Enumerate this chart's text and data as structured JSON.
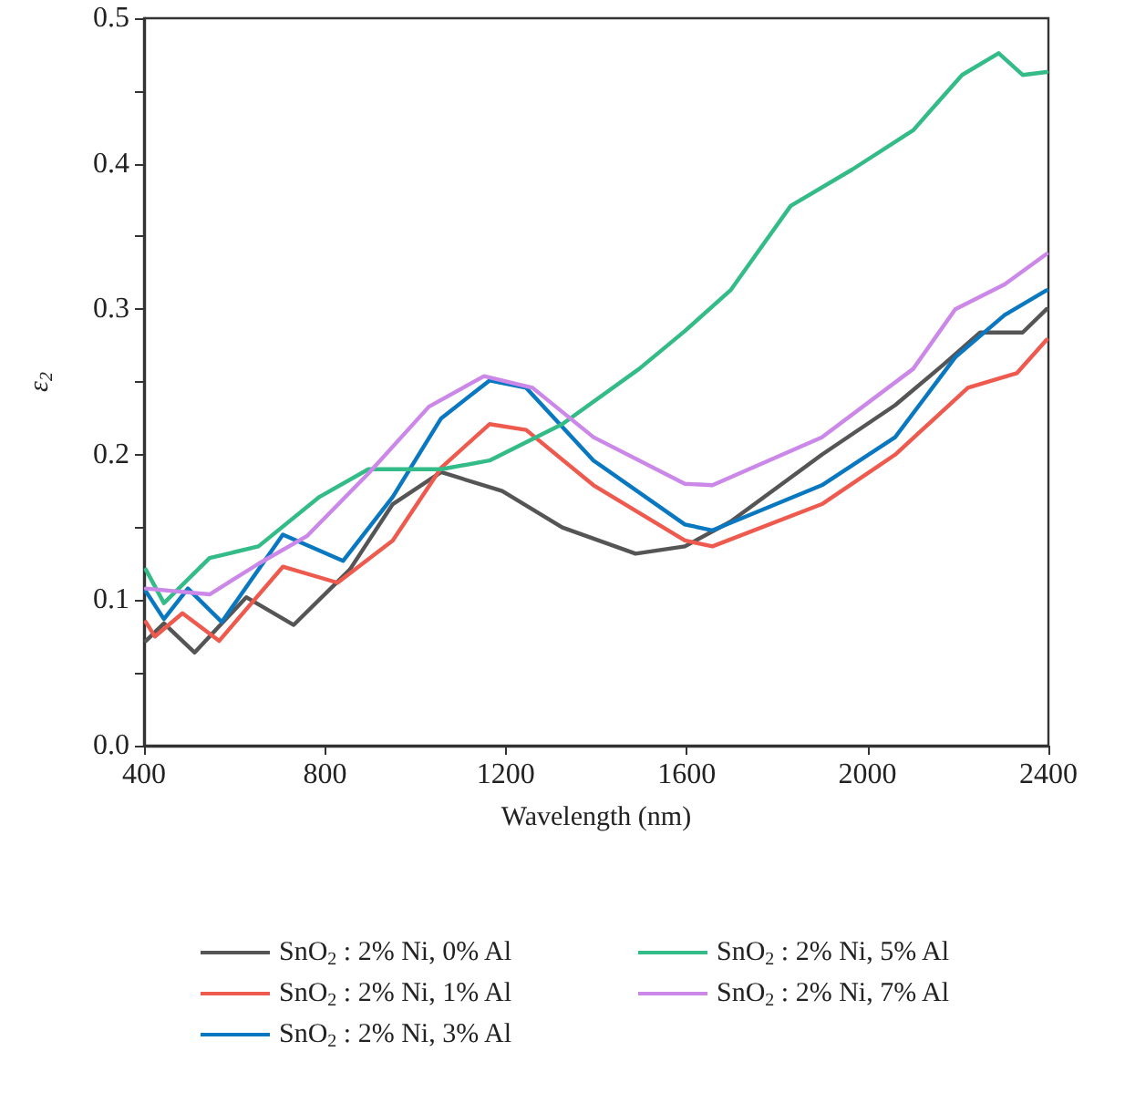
{
  "chart_data": {
    "type": "line",
    "xlabel": "Wavelength (nm)",
    "ylabel": "ε$_{2}$",
    "xlim": [
      400,
      2400
    ],
    "xticks": [
      400,
      800,
      1200,
      1600,
      2000,
      2400
    ],
    "ylim": [
      0,
      0.5
    ],
    "yticks": [
      {
        "value": 0,
        "label": "0.0"
      },
      {
        "value": 0.05,
        "label": null
      },
      {
        "value": 0.1,
        "label": "0.1"
      },
      {
        "value": 0.15,
        "label": null
      },
      {
        "value": 0.2,
        "label": "0.2"
      },
      {
        "value": 0.25,
        "label": null
      },
      {
        "value": 0.3,
        "label": "0.3"
      },
      {
        "value": 0.35,
        "label": null
      },
      {
        "value": 0.4,
        "label": "0.4"
      },
      {
        "value": 0.45,
        "label": null
      },
      {
        "value": 0.5,
        "label": "0.5"
      }
    ],
    "grid": false,
    "legend": "bottom",
    "marker": "none",
    "line_style": "solid",
    "series": [
      {
        "name": "SnO$_{2}$ : 2% Ni, 0% Al",
        "color": "#555555",
        "x": [
          404,
          444,
          512,
          626,
          731,
          855,
          950,
          1057,
          1192,
          1325,
          1487,
          1596,
          1697,
          1899,
          2061,
          2168,
          2249,
          2343,
          2396
        ],
        "values": [
          0.072,
          0.084,
          0.064,
          0.102,
          0.083,
          0.121,
          0.166,
          0.188,
          0.175,
          0.15,
          0.132,
          0.137,
          0.154,
          0.2,
          0.234,
          0.262,
          0.284,
          0.284,
          0.3
        ]
      },
      {
        "name": "SnO$_{2}$ : 2% Ni, 1% Al",
        "color": "#ef5a4f",
        "x": [
          404,
          424,
          485,
          566,
          707,
          828,
          950,
          1057,
          1164,
          1245,
          1394,
          1596,
          1657,
          1899,
          2061,
          2222,
          2330,
          2396
        ],
        "values": [
          0.085,
          0.075,
          0.091,
          0.072,
          0.123,
          0.112,
          0.141,
          0.191,
          0.221,
          0.217,
          0.179,
          0.141,
          0.137,
          0.166,
          0.2,
          0.246,
          0.256,
          0.279
        ]
      },
      {
        "name": "SnO$_{2}$ : 2% Ni, 3% Al",
        "color": "#0a78c0",
        "x": [
          404,
          444,
          497,
          572,
          707,
          840,
          950,
          1057,
          1164,
          1245,
          1394,
          1596,
          1657,
          1899,
          2061,
          2194,
          2303,
          2396
        ],
        "values": [
          0.106,
          0.087,
          0.108,
          0.085,
          0.145,
          0.127,
          0.171,
          0.225,
          0.251,
          0.246,
          0.196,
          0.152,
          0.148,
          0.179,
          0.212,
          0.267,
          0.296,
          0.313
        ]
      },
      {
        "name": "SnO$_{2}$ : 2% Ni, 5% Al",
        "color": "#33bb88",
        "x": [
          404,
          444,
          545,
          653,
          788,
          896,
          1057,
          1164,
          1325,
          1495,
          1596,
          1697,
          1830,
          1966,
          2101,
          2209,
          2290,
          2343,
          2396
        ],
        "values": [
          0.121,
          0.098,
          0.129,
          0.137,
          0.171,
          0.19,
          0.19,
          0.196,
          0.221,
          0.259,
          0.285,
          0.313,
          0.371,
          0.396,
          0.423,
          0.461,
          0.476,
          0.461,
          0.463
        ]
      },
      {
        "name": "SnO$_{2}$ : 2% Ni, 7% Al",
        "color": "#cc88e8",
        "x": [
          404,
          545,
          653,
          760,
          896,
          1030,
          1152,
          1259,
          1394,
          1596,
          1657,
          1899,
          2101,
          2194,
          2303,
          2396
        ],
        "values": [
          0.108,
          0.104,
          0.125,
          0.144,
          0.187,
          0.233,
          0.254,
          0.246,
          0.212,
          0.18,
          0.179,
          0.212,
          0.259,
          0.3,
          0.317,
          0.338
        ]
      }
    ]
  }
}
